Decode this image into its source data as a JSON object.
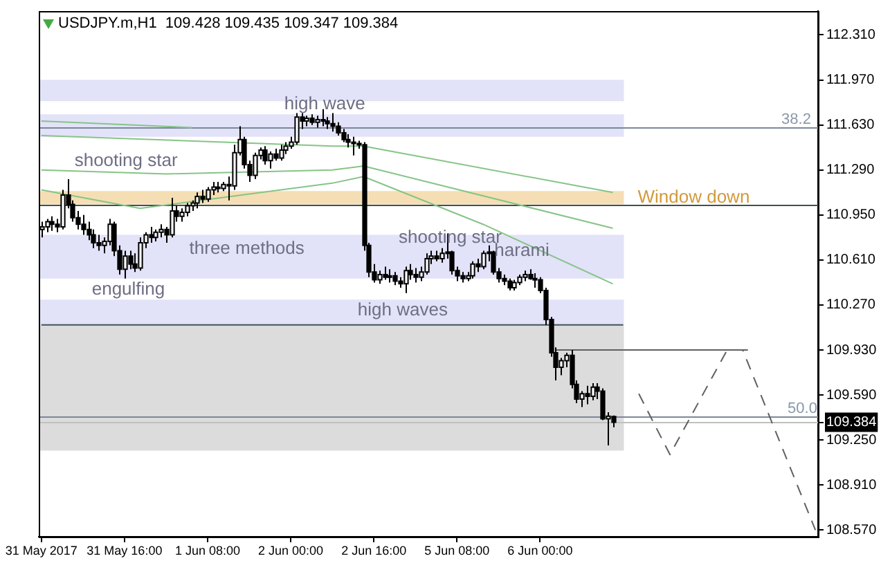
{
  "chart_data": {
    "type": "candlestick",
    "title": "USDJPY.m,H1  109.428 109.435 109.347 109.384",
    "categories": [
      "31 May 2017",
      null,
      null,
      null,
      null,
      null,
      null,
      null,
      null,
      null,
      null,
      null,
      null,
      null,
      null,
      null,
      "31 May 16:00",
      null,
      null,
      null,
      null,
      null,
      null,
      null,
      null,
      null,
      null,
      null,
      null,
      null,
      null,
      null,
      "1 Jun 08:00",
      null,
      null,
      null,
      null,
      null,
      null,
      null,
      null,
      null,
      null,
      null,
      null,
      null,
      null,
      null,
      "2 Jun 00:00",
      null,
      null,
      null,
      null,
      null,
      null,
      null,
      null,
      null,
      null,
      null,
      null,
      null,
      null,
      null,
      "2 Jun 16:00",
      null,
      null,
      null,
      null,
      null,
      null,
      null,
      null,
      null,
      null,
      null,
      null,
      null,
      null,
      null,
      "5 Jun 08:00",
      null,
      null,
      null,
      null,
      null,
      null,
      null,
      null,
      null,
      null,
      null,
      null,
      null,
      null,
      null,
      "6 Jun 00:00",
      null,
      null,
      null,
      null,
      null,
      null,
      null,
      null,
      null,
      null,
      null,
      null,
      null,
      null,
      null,
      null,
      null,
      null,
      null,
      null,
      null,
      null,
      null,
      null,
      null,
      null,
      null,
      null,
      null,
      null,
      null,
      null,
      null,
      null,
      null,
      null,
      null,
      null,
      null,
      null,
      null,
      null,
      null,
      null,
      null,
      null,
      null,
      null,
      null,
      null,
      null,
      null,
      null
    ],
    "ohlc": [
      [
        110.84,
        110.9,
        110.78,
        110.86
      ],
      [
        110.86,
        110.92,
        110.82,
        110.9
      ],
      [
        110.9,
        110.94,
        110.83,
        110.88
      ],
      [
        110.88,
        110.92,
        110.82,
        110.86
      ],
      [
        110.86,
        111.14,
        110.84,
        111.1
      ],
      [
        111.1,
        111.22,
        111.0,
        111.03
      ],
      [
        111.03,
        111.06,
        110.9,
        110.93
      ],
      [
        110.93,
        110.98,
        110.84,
        110.88
      ],
      [
        110.88,
        110.95,
        110.8,
        110.84
      ],
      [
        110.84,
        110.9,
        110.76,
        110.8
      ],
      [
        110.8,
        110.84,
        110.7,
        110.74
      ],
      [
        110.74,
        110.8,
        110.68,
        110.72
      ],
      [
        110.72,
        110.78,
        110.66,
        110.75
      ],
      [
        110.75,
        110.92,
        110.72,
        110.88
      ],
      [
        110.88,
        110.9,
        110.64,
        110.68
      ],
      [
        110.68,
        110.72,
        110.5,
        110.54
      ],
      [
        110.54,
        110.68,
        110.47,
        110.64
      ],
      [
        110.64,
        110.68,
        110.54,
        110.58
      ],
      [
        110.58,
        110.66,
        110.52,
        110.55
      ],
      [
        110.55,
        110.78,
        110.53,
        110.74
      ],
      [
        110.74,
        110.82,
        110.7,
        110.8
      ],
      [
        110.8,
        110.86,
        110.74,
        110.78
      ],
      [
        110.78,
        110.84,
        110.75,
        110.82
      ],
      [
        110.82,
        110.88,
        110.78,
        110.84
      ],
      [
        110.84,
        110.86,
        110.74,
        110.8
      ],
      [
        110.8,
        111.08,
        110.78,
        110.98
      ],
      [
        110.98,
        111.02,
        110.9,
        110.94
      ],
      [
        110.94,
        111.0,
        110.9,
        110.97
      ],
      [
        110.97,
        111.04,
        110.94,
        111.02
      ],
      [
        111.02,
        111.06,
        110.98,
        111.04
      ],
      [
        111.04,
        111.12,
        111.0,
        111.09
      ],
      [
        111.09,
        111.14,
        111.04,
        111.07
      ],
      [
        111.07,
        111.16,
        111.05,
        111.14
      ],
      [
        111.14,
        111.2,
        111.1,
        111.16
      ],
      [
        111.16,
        111.2,
        111.12,
        111.15
      ],
      [
        111.15,
        111.2,
        111.13,
        111.18
      ],
      [
        111.18,
        111.24,
        111.06,
        111.17
      ],
      [
        111.17,
        111.48,
        111.14,
        111.42
      ],
      [
        111.42,
        111.62,
        111.4,
        111.52
      ],
      [
        111.52,
        111.54,
        111.3,
        111.33
      ],
      [
        111.33,
        111.36,
        111.2,
        111.25
      ],
      [
        111.25,
        111.42,
        111.22,
        111.4
      ],
      [
        111.4,
        111.46,
        111.37,
        111.44
      ],
      [
        111.44,
        111.47,
        111.33,
        111.36
      ],
      [
        111.36,
        111.43,
        111.3,
        111.41
      ],
      [
        111.41,
        111.45,
        111.36,
        111.38
      ],
      [
        111.38,
        111.48,
        111.36,
        111.44
      ],
      [
        111.44,
        111.5,
        111.41,
        111.47
      ],
      [
        111.47,
        111.54,
        111.45,
        111.5
      ],
      [
        111.5,
        111.72,
        111.48,
        111.69
      ],
      [
        111.69,
        111.72,
        111.6,
        111.66
      ],
      [
        111.66,
        111.7,
        111.62,
        111.68
      ],
      [
        111.68,
        111.71,
        111.63,
        111.65
      ],
      [
        111.65,
        111.7,
        111.61,
        111.67
      ],
      [
        111.67,
        111.75,
        111.62,
        111.66
      ],
      [
        111.66,
        111.69,
        111.6,
        111.64
      ],
      [
        111.64,
        111.72,
        111.58,
        111.62
      ],
      [
        111.62,
        111.65,
        111.55,
        111.57
      ],
      [
        111.57,
        111.6,
        111.5,
        111.52
      ],
      [
        111.52,
        111.56,
        111.46,
        111.5
      ],
      [
        111.5,
        111.54,
        111.4,
        111.49
      ],
      [
        111.49,
        111.51,
        111.45,
        111.48
      ],
      [
        111.48,
        111.5,
        110.68,
        110.72
      ],
      [
        110.72,
        110.74,
        110.48,
        110.52
      ],
      [
        110.52,
        110.58,
        110.44,
        110.46
      ],
      [
        110.46,
        110.53,
        110.43,
        110.5
      ],
      [
        110.5,
        110.56,
        110.46,
        110.48
      ],
      [
        110.48,
        110.54,
        110.44,
        110.49
      ],
      [
        110.49,
        110.52,
        110.42,
        110.45
      ],
      [
        110.45,
        110.48,
        110.4,
        110.43
      ],
      [
        110.43,
        110.56,
        110.36,
        110.53
      ],
      [
        110.53,
        110.58,
        110.46,
        110.5
      ],
      [
        110.5,
        110.55,
        110.44,
        110.48
      ],
      [
        110.48,
        110.56,
        110.45,
        110.52
      ],
      [
        110.52,
        110.66,
        110.5,
        110.62
      ],
      [
        110.62,
        110.68,
        110.58,
        110.64
      ],
      [
        110.64,
        110.68,
        110.6,
        110.62
      ],
      [
        110.62,
        110.7,
        110.59,
        110.66
      ],
      [
        110.66,
        110.81,
        110.62,
        110.67
      ],
      [
        110.67,
        110.68,
        110.5,
        110.53
      ],
      [
        110.53,
        110.56,
        110.45,
        110.49
      ],
      [
        110.49,
        110.52,
        110.44,
        110.47
      ],
      [
        110.47,
        110.52,
        110.45,
        110.49
      ],
      [
        110.49,
        110.6,
        110.47,
        110.58
      ],
      [
        110.58,
        110.62,
        110.52,
        110.56
      ],
      [
        110.56,
        110.68,
        110.54,
        110.66
      ],
      [
        110.66,
        110.72,
        110.6,
        110.67
      ],
      [
        110.67,
        110.68,
        110.5,
        110.52
      ],
      [
        110.52,
        110.55,
        110.44,
        110.47
      ],
      [
        110.47,
        110.5,
        110.42,
        110.45
      ],
      [
        110.45,
        110.47,
        110.38,
        110.4
      ],
      [
        110.4,
        110.46,
        110.38,
        110.44
      ],
      [
        110.44,
        110.5,
        110.42,
        110.48
      ],
      [
        110.48,
        110.53,
        110.45,
        110.5
      ],
      [
        110.5,
        110.54,
        110.46,
        110.47
      ],
      [
        110.47,
        110.51,
        110.4,
        110.46
      ],
      [
        110.46,
        110.48,
        110.36,
        110.38
      ],
      [
        110.38,
        110.4,
        110.12,
        110.16
      ],
      [
        110.16,
        110.18,
        109.88,
        109.91
      ],
      [
        109.91,
        109.95,
        109.7,
        109.8
      ],
      [
        109.8,
        109.87,
        109.74,
        109.85
      ],
      [
        109.85,
        109.91,
        109.8,
        109.89
      ],
      [
        109.89,
        109.93,
        109.64,
        109.67
      ],
      [
        109.67,
        109.7,
        109.53,
        109.56
      ],
      [
        109.56,
        109.62,
        109.5,
        109.6
      ],
      [
        109.6,
        109.66,
        109.52,
        109.58
      ],
      [
        109.58,
        109.68,
        109.55,
        109.65
      ],
      [
        109.65,
        109.68,
        109.56,
        109.62
      ],
      [
        109.62,
        109.64,
        109.4,
        109.41
      ],
      [
        109.41,
        109.46,
        109.21,
        109.43
      ],
      [
        109.428,
        109.435,
        109.347,
        109.384
      ],
      null,
      null,
      null,
      null,
      null,
      null,
      null,
      null,
      null,
      null,
      null,
      null,
      null,
      null,
      null,
      null,
      null,
      null,
      null,
      null,
      null,
      null,
      null,
      null,
      null,
      null,
      null,
      null,
      null,
      null,
      null,
      null,
      null,
      null,
      null,
      null,
      null,
      null,
      null
    ],
    "series": [
      {
        "type": "line",
        "color": "#86c486",
        "values": [
          111.66,
          null,
          null,
          null,
          null,
          null,
          null,
          null,
          null,
          null,
          null,
          null,
          null,
          null,
          null,
          null,
          null,
          null,
          null,
          null,
          null,
          null,
          null,
          null,
          null,
          null,
          null,
          null,
          null,
          111.61,
          null,
          null,
          null,
          null,
          null,
          null,
          null,
          null,
          null,
          null,
          null,
          null,
          null,
          null,
          null,
          null,
          null,
          null,
          null,
          null,
          null,
          null,
          null,
          null,
          null,
          null,
          null,
          null,
          null,
          null,
          null,
          null,
          null,
          null,
          null,
          null,
          null,
          null,
          null,
          null,
          null,
          null,
          null,
          null,
          null,
          null,
          null,
          null,
          null,
          null,
          null,
          null,
          null,
          null,
          null,
          null,
          null,
          null,
          null,
          null,
          null,
          null,
          null,
          null,
          null,
          null,
          null,
          null,
          null,
          null,
          null,
          null,
          null,
          null,
          null,
          null,
          null,
          null,
          null,
          null,
          null,
          null,
          null,
          null,
          null,
          null,
          null,
          null,
          null,
          null,
          null,
          null,
          null,
          null,
          null,
          null,
          null,
          null,
          null,
          null,
          null,
          null,
          null,
          null,
          null,
          null,
          null,
          null,
          null,
          null,
          null,
          null,
          null,
          null,
          null,
          null,
          null,
          null,
          null,
          null
        ]
      },
      {
        "type": "line",
        "color": "#86c486",
        "values": [
          111.55,
          null,
          null,
          null,
          null,
          null,
          null,
          null,
          null,
          null,
          null,
          null,
          null,
          null,
          null,
          null,
          null,
          null,
          null,
          null,
          null,
          null,
          null,
          null,
          null,
          null,
          null,
          null,
          null,
          null,
          null,
          null,
          null,
          null,
          null,
          null,
          null,
          null,
          null,
          null,
          null,
          null,
          null,
          null,
          null,
          null,
          null,
          null,
          null,
          null,
          null,
          null,
          null,
          null,
          null,
          null,
          111.47,
          null,
          null,
          null,
          null,
          null,
          111.47,
          null,
          null,
          null,
          null,
          null,
          null,
          null,
          null,
          null,
          null,
          null,
          null,
          null,
          null,
          null,
          null,
          null,
          null,
          null,
          null,
          null,
          null,
          null,
          null,
          null,
          null,
          null,
          null,
          null,
          null,
          null,
          null,
          null,
          null,
          null,
          null,
          null,
          null,
          null,
          null,
          null,
          null,
          null,
          null,
          null,
          null,
          null,
          111.12,
          null,
          null,
          null,
          null,
          null,
          null,
          null,
          null,
          null,
          null,
          null,
          null,
          null,
          null,
          null,
          null,
          null,
          null,
          null,
          null,
          null,
          null,
          null,
          null,
          null,
          null,
          null,
          null,
          null,
          null,
          null,
          null,
          null,
          null,
          null,
          null,
          null,
          null,
          null
        ]
      },
      {
        "type": "line",
        "color": "#86c486",
        "values": [
          111.29,
          null,
          null,
          null,
          null,
          null,
          null,
          null,
          null,
          null,
          null,
          null,
          null,
          null,
          null,
          null,
          null,
          null,
          null,
          null,
          null,
          null,
          null,
          null,
          111.26,
          null,
          null,
          null,
          null,
          null,
          null,
          null,
          null,
          null,
          null,
          null,
          null,
          null,
          null,
          null,
          null,
          null,
          null,
          null,
          null,
          null,
          null,
          null,
          null,
          null,
          null,
          null,
          null,
          null,
          null,
          null,
          111.29,
          null,
          null,
          null,
          null,
          null,
          111.32,
          null,
          null,
          null,
          null,
          null,
          null,
          null,
          null,
          null,
          null,
          null,
          null,
          null,
          null,
          null,
          null,
          null,
          null,
          null,
          null,
          null,
          null,
          null,
          null,
          null,
          null,
          null,
          null,
          null,
          null,
          null,
          null,
          null,
          null,
          null,
          null,
          null,
          null,
          null,
          null,
          null,
          null,
          null,
          null,
          null,
          null,
          null,
          110.85,
          null,
          null,
          null,
          null,
          null,
          null,
          null,
          null,
          null,
          null,
          null,
          null,
          null,
          null,
          null,
          null,
          null,
          null,
          null,
          null,
          null,
          null,
          null,
          null,
          null,
          null,
          null,
          null,
          null,
          null,
          null,
          null,
          null,
          null,
          null,
          null,
          null,
          null,
          null
        ]
      },
      {
        "type": "line",
        "color": "#86c486",
        "values": [
          111.14,
          null,
          null,
          null,
          null,
          null,
          null,
          null,
          null,
          null,
          null,
          null,
          null,
          null,
          null,
          null,
          null,
          null,
          null,
          111.0,
          null,
          null,
          null,
          null,
          null,
          null,
          null,
          null,
          null,
          null,
          null,
          null,
          null,
          null,
          null,
          null,
          null,
          null,
          null,
          null,
          null,
          null,
          null,
          null,
          null,
          null,
          null,
          null,
          null,
          null,
          null,
          null,
          null,
          null,
          null,
          null,
          111.19,
          null,
          null,
          null,
          null,
          null,
          111.24,
          null,
          null,
          null,
          null,
          null,
          null,
          null,
          null,
          null,
          null,
          null,
          null,
          null,
          null,
          null,
          null,
          null,
          null,
          null,
          null,
          null,
          null,
          110.88,
          null,
          null,
          null,
          null,
          null,
          null,
          null,
          null,
          null,
          null,
          null,
          null,
          null,
          null,
          null,
          null,
          null,
          null,
          null,
          null,
          null,
          null,
          null,
          null,
          110.43,
          null,
          null,
          null,
          null,
          null,
          null,
          null,
          null,
          null,
          null,
          null,
          null,
          null,
          null,
          null,
          null,
          null,
          null,
          null,
          null,
          null,
          null,
          null,
          null,
          null,
          null,
          null,
          null,
          null,
          null,
          null,
          null,
          null,
          null,
          null,
          null,
          null,
          null,
          null
        ]
      },
      {
        "type": "line",
        "color": "#3e5656",
        "values": [
          110.12,
          null,
          null,
          null,
          null,
          null,
          null,
          null,
          null,
          null,
          null,
          null,
          null,
          null,
          null,
          null,
          null,
          null,
          null,
          null,
          null,
          null,
          null,
          null,
          null,
          null,
          null,
          null,
          null,
          null,
          null,
          null,
          null,
          null,
          null,
          null,
          null,
          null,
          null,
          null,
          null,
          null,
          null,
          null,
          null,
          null,
          null,
          null,
          null,
          null,
          null,
          null,
          null,
          null,
          null,
          null,
          null,
          null,
          null,
          null,
          null,
          null,
          null,
          null,
          null,
          null,
          null,
          null,
          null,
          null,
          null,
          null,
          null,
          null,
          null,
          null,
          null,
          null,
          null,
          null,
          null,
          null,
          null,
          null,
          null,
          null,
          null,
          null,
          null,
          null,
          null,
          null,
          null,
          null,
          null,
          null,
          null,
          null,
          null,
          null,
          null,
          null,
          null,
          null,
          null,
          null,
          null,
          null,
          null,
          null,
          null,
          null,
          110.12,
          null,
          null,
          null,
          null,
          null,
          null,
          null,
          null,
          null,
          null,
          null,
          null,
          null,
          null,
          null,
          null,
          null,
          null,
          null,
          null,
          null,
          null,
          null,
          null,
          null,
          null,
          null,
          null,
          null,
          null,
          null,
          null,
          null,
          null,
          null,
          null,
          null
        ]
      },
      {
        "type": "line",
        "color": "#606060",
        "values": [
          null,
          null,
          null,
          null,
          null,
          null,
          null,
          null,
          null,
          null,
          null,
          null,
          null,
          null,
          null,
          null,
          null,
          null,
          null,
          null,
          null,
          null,
          null,
          null,
          null,
          null,
          null,
          null,
          null,
          null,
          null,
          null,
          null,
          null,
          null,
          null,
          null,
          null,
          null,
          null,
          null,
          null,
          null,
          null,
          null,
          null,
          null,
          null,
          null,
          null,
          null,
          null,
          null,
          null,
          null,
          null,
          null,
          null,
          null,
          null,
          null,
          null,
          null,
          null,
          null,
          null,
          null,
          null,
          null,
          null,
          null,
          null,
          null,
          null,
          null,
          null,
          null,
          null,
          null,
          null,
          null,
          null,
          null,
          null,
          null,
          null,
          null,
          null,
          null,
          null,
          null,
          null,
          null,
          null,
          null,
          null,
          null,
          null,
          null,
          109.93,
          null,
          null,
          null,
          null,
          null,
          null,
          null,
          null,
          null,
          null,
          null,
          null,
          null,
          null,
          null,
          null,
          null,
          null,
          null,
          null,
          null,
          null,
          null,
          null,
          null,
          null,
          null,
          null,
          null,
          null,
          null,
          null,
          null,
          null,
          null,
          null,
          109.93,
          null,
          null,
          null,
          null,
          null,
          null,
          null,
          null,
          null,
          null,
          null,
          null,
          null
        ]
      },
      {
        "type": "line",
        "color": "#606060",
        "line_style": "dashed",
        "values": [
          null,
          null,
          null,
          null,
          null,
          null,
          null,
          null,
          null,
          null,
          null,
          null,
          null,
          null,
          null,
          null,
          null,
          null,
          null,
          null,
          null,
          null,
          null,
          null,
          null,
          null,
          null,
          null,
          null,
          null,
          null,
          null,
          null,
          null,
          null,
          null,
          null,
          null,
          null,
          null,
          null,
          null,
          null,
          null,
          null,
          null,
          null,
          null,
          null,
          null,
          null,
          null,
          null,
          null,
          null,
          null,
          null,
          null,
          null,
          null,
          null,
          null,
          null,
          null,
          null,
          null,
          null,
          null,
          null,
          null,
          null,
          null,
          null,
          null,
          null,
          null,
          null,
          null,
          null,
          null,
          null,
          null,
          null,
          null,
          null,
          null,
          null,
          null,
          null,
          null,
          null,
          null,
          null,
          null,
          null,
          null,
          null,
          null,
          null,
          null,
          null,
          null,
          null,
          null,
          null,
          null,
          null,
          null,
          null,
          null,
          null,
          null,
          null,
          null,
          null,
          109.6,
          null,
          null,
          null,
          null,
          null,
          109.14,
          null,
          null,
          null,
          null,
          null,
          null,
          null,
          null,
          null,
          null,
          109.93,
          null,
          null,
          109.93,
          null,
          null,
          null,
          null,
          null,
          null,
          null,
          null,
          null,
          null,
          null,
          null,
          null,
          108.57
        ]
      }
    ],
    "bands": [
      {
        "axis": "y",
        "from": 111.81,
        "to": 111.97,
        "color": "#e2e2f8"
      },
      {
        "axis": "y",
        "from": 111.54,
        "to": 111.71,
        "color": "#e2e2f8"
      },
      {
        "axis": "y",
        "from": 111.03,
        "to": 111.13,
        "color": "#f5deb3",
        "label": "Window down"
      },
      {
        "axis": "y",
        "from": 110.47,
        "to": 110.8,
        "color": "#e2e2f8"
      },
      {
        "axis": "y",
        "from": 110.12,
        "to": 110.31,
        "color": "#e2e2f8"
      },
      {
        "axis": "y",
        "from": 109.17,
        "to": 110.12,
        "color": "#dcdcdc"
      }
    ],
    "ref_lines": [
      {
        "axis": "y",
        "value": 111.61,
        "color": "#7a8899"
      },
      {
        "axis": "y",
        "value": 111.025,
        "color": "#405050"
      },
      {
        "axis": "y",
        "value": 109.43,
        "color": "#7a8899"
      },
      {
        "axis": "y",
        "value": 109.384,
        "color": "#c0c0c0"
      }
    ],
    "annotations": [
      "high wave",
      "shooting star",
      "three methods",
      "engulfing",
      "shooting star",
      "harami",
      "high waves",
      "38.2",
      "50.0"
    ],
    "ylim": [
      108.52,
      112.49
    ],
    "yticks": [
      {
        "value": 112.31,
        "label": "112.310"
      },
      {
        "value": 111.97,
        "label": "111.970"
      },
      {
        "value": 111.63,
        "label": "111.630"
      },
      {
        "value": 111.29,
        "label": "111.290"
      },
      {
        "value": 110.95,
        "label": "110.950"
      },
      {
        "value": 110.61,
        "label": "110.610"
      },
      {
        "value": 110.27,
        "label": "110.270"
      },
      {
        "value": 109.93,
        "label": "109.930"
      },
      {
        "value": 109.59,
        "label": "109.590"
      },
      {
        "value": 109.384,
        "label": "109.384"
      },
      {
        "value": 109.25,
        "label": "109.250"
      },
      {
        "value": 108.91,
        "label": "108.910"
      },
      {
        "value": 108.57,
        "label": "108.570"
      }
    ]
  }
}
